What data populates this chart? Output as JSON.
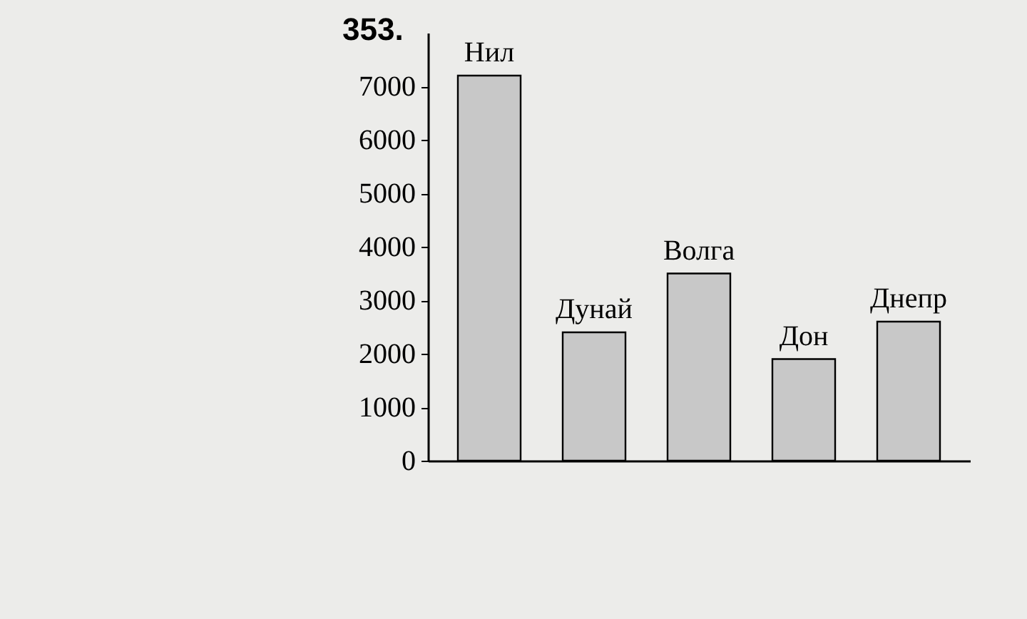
{
  "chart_data": {
    "type": "bar",
    "title": "353.",
    "categories": [
      "Нил",
      "Дунай",
      "Волга",
      "Дон",
      "Днепр"
    ],
    "values": [
      7200,
      2400,
      3500,
      1900,
      2600
    ],
    "color": "#c8c8c8",
    "ylim": [
      0,
      8000
    ],
    "yticks": [
      0,
      1000,
      2000,
      3000,
      4000,
      5000,
      6000,
      7000
    ],
    "grid": false,
    "tick_labels": "y"
  }
}
